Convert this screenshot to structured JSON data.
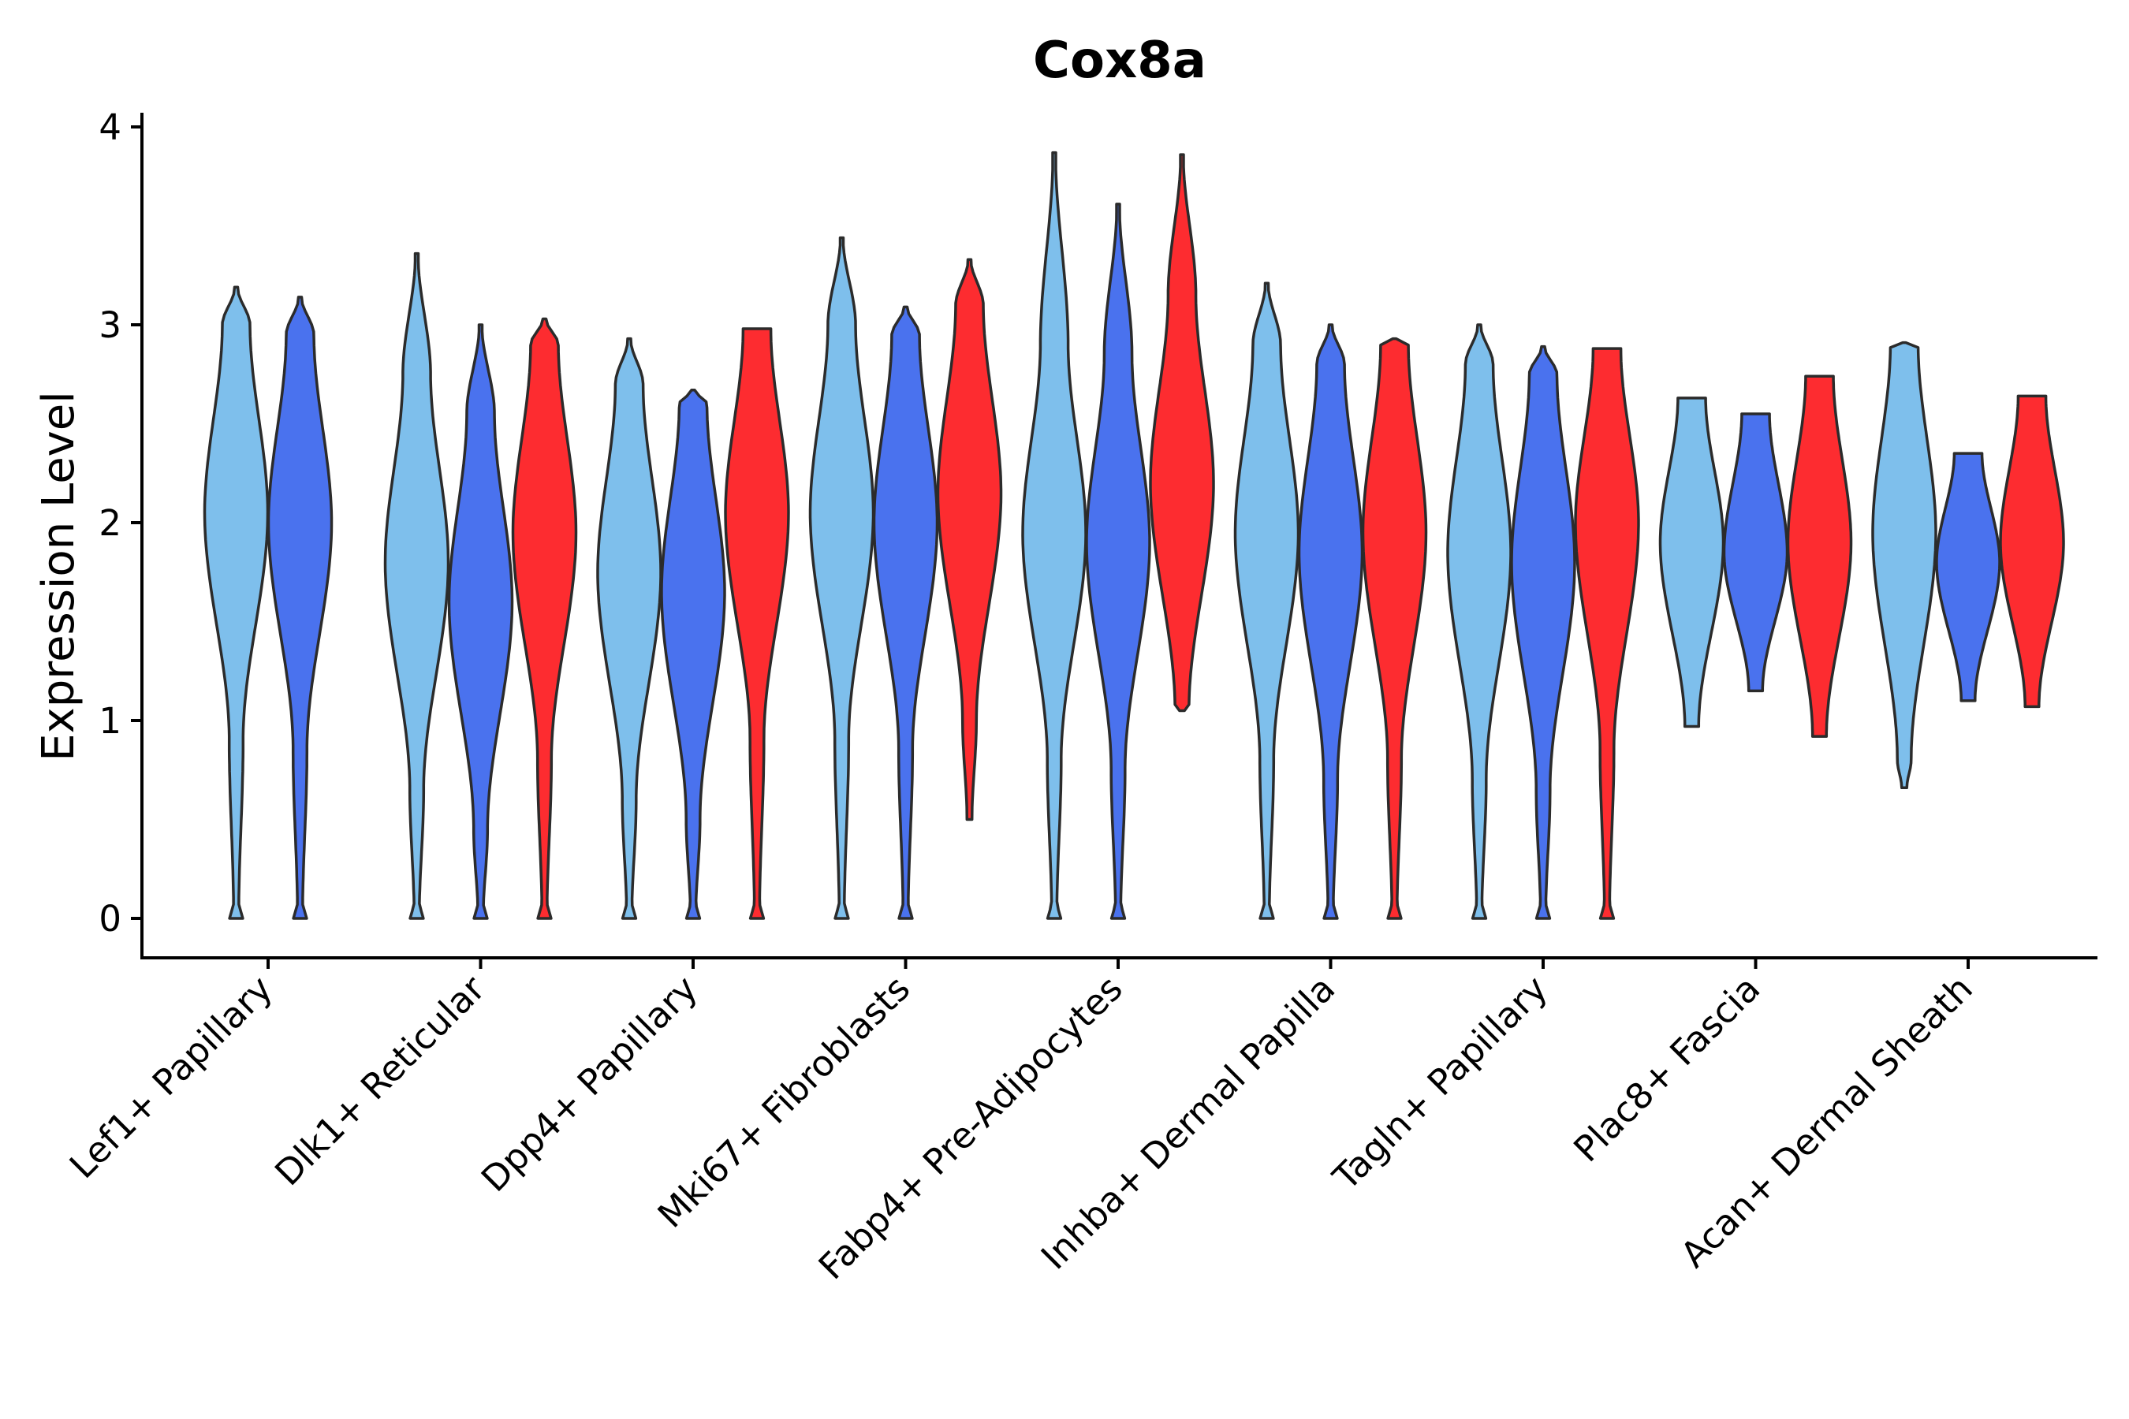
{
  "chart_data": {
    "type": "violin",
    "title": "Cox8a",
    "xlabel": "",
    "ylabel": "Expression Level",
    "ylim": [
      -0.2,
      4.07
    ],
    "yticks": [
      0,
      1,
      2,
      3,
      4
    ],
    "legend": "none",
    "colors": {
      "group1": "#7ebfec",
      "group2": "#4a72ee",
      "group3": "#fd2c30",
      "outline": "#2b2b2b"
    },
    "categories": [
      {
        "label": "Lef1+ Papillary",
        "violins": [
          {
            "group": 1,
            "min": 0,
            "max": 3.19,
            "mode": 2.05,
            "has_zero": true
          },
          {
            "group": 2,
            "min": 0,
            "max": 3.14,
            "mode": 2.0,
            "has_zero": true
          }
        ]
      },
      {
        "label": "Dlk1+ Reticular",
        "violins": [
          {
            "group": 1,
            "min": 0,
            "max": 3.36,
            "mode": 1.8,
            "has_zero": true
          },
          {
            "group": 2,
            "min": 0,
            "max": 3.0,
            "mode": 1.6,
            "has_zero": true
          },
          {
            "group": 3,
            "min": 0,
            "max": 3.03,
            "mode": 1.95,
            "has_zero": true
          }
        ]
      },
      {
        "label": "Dpp4+ Papillary",
        "violins": [
          {
            "group": 1,
            "min": 0,
            "max": 2.93,
            "mode": 1.75,
            "has_zero": true
          },
          {
            "group": 2,
            "min": 0,
            "max": 2.67,
            "mode": 1.65,
            "has_zero": true
          },
          {
            "group": 3,
            "min": 0,
            "max": 2.98,
            "mode": 2.05,
            "has_zero": true
          }
        ]
      },
      {
        "label": "Mki67+ Fibroblasts",
        "violins": [
          {
            "group": 1,
            "min": 0,
            "max": 3.44,
            "mode": 2.05,
            "has_zero": true
          },
          {
            "group": 2,
            "min": 0,
            "max": 3.09,
            "mode": 2.0,
            "has_zero": true
          },
          {
            "group": 3,
            "min": 0.5,
            "max": 3.33,
            "mode": 2.15,
            "has_zero": false
          }
        ]
      },
      {
        "label": "Fabp4+ Pre-Adipocytes",
        "violins": [
          {
            "group": 1,
            "min": 0,
            "max": 3.87,
            "mode": 1.95,
            "has_zero": true
          },
          {
            "group": 2,
            "min": 0,
            "max": 3.61,
            "mode": 1.9,
            "has_zero": true
          },
          {
            "group": 3,
            "min": 1.05,
            "max": 3.86,
            "mode": 2.2,
            "has_zero": false
          }
        ]
      },
      {
        "label": "Inhba+ Dermal Papilla",
        "violins": [
          {
            "group": 1,
            "min": 0,
            "max": 3.21,
            "mode": 1.95,
            "has_zero": true
          },
          {
            "group": 2,
            "min": 0,
            "max": 3.0,
            "mode": 1.85,
            "has_zero": true
          },
          {
            "group": 3,
            "min": 0,
            "max": 2.93,
            "mode": 1.95,
            "has_zero": true
          }
        ]
      },
      {
        "label": "Tagln+ Papillary",
        "violins": [
          {
            "group": 1,
            "min": 0,
            "max": 3.0,
            "mode": 1.85,
            "has_zero": true
          },
          {
            "group": 2,
            "min": 0,
            "max": 2.89,
            "mode": 1.8,
            "has_zero": true
          },
          {
            "group": 3,
            "min": 0,
            "max": 2.88,
            "mode": 2.0,
            "has_zero": true
          }
        ]
      },
      {
        "label": "Plac8+ Fascia",
        "violins": [
          {
            "group": 1,
            "min": 0.97,
            "max": 2.63,
            "mode": 1.9,
            "has_zero": false
          },
          {
            "group": 2,
            "min": 1.15,
            "max": 2.55,
            "mode": 1.85,
            "has_zero": false
          },
          {
            "group": 3,
            "min": 0.92,
            "max": 2.74,
            "mode": 1.9,
            "has_zero": false
          }
        ]
      },
      {
        "label": "Acan+ Dermal Sheath",
        "violins": [
          {
            "group": 1,
            "min": 0.66,
            "max": 2.91,
            "mode": 1.95,
            "has_zero": false
          },
          {
            "group": 2,
            "min": 1.1,
            "max": 2.35,
            "mode": 1.8,
            "has_zero": false
          },
          {
            "group": 3,
            "min": 1.07,
            "max": 2.64,
            "mode": 1.9,
            "has_zero": false
          }
        ]
      }
    ]
  }
}
